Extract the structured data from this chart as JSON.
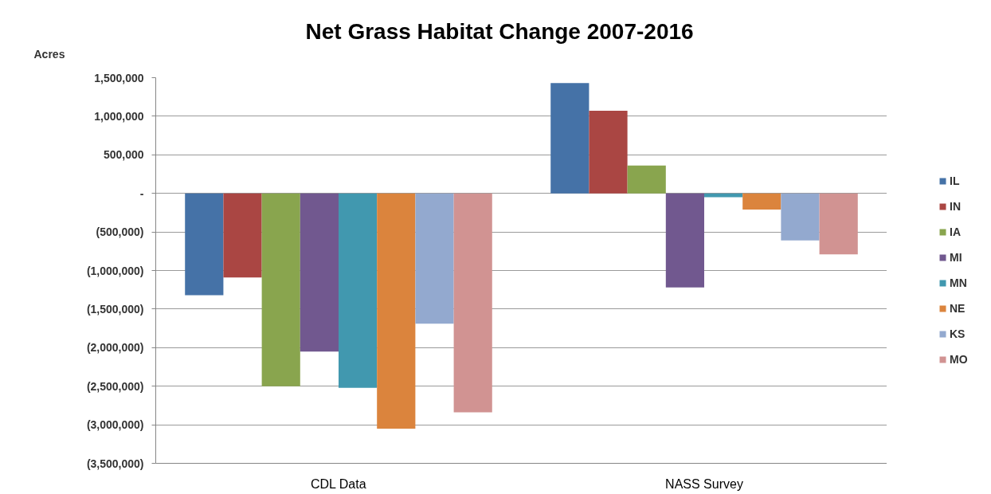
{
  "chart_data": {
    "type": "bar",
    "title": "Net Grass Habitat Change 2007-2016",
    "annotations": [
      "Acres"
    ],
    "categories": [
      "CDL Data",
      "NASS Survey"
    ],
    "series": [
      {
        "name": "IL",
        "color": "#4572a7",
        "values": [
          -1320000,
          1430000
        ]
      },
      {
        "name": "IN",
        "color": "#aa4643",
        "values": [
          -1090000,
          1070000
        ]
      },
      {
        "name": "IA",
        "color": "#89a54e",
        "values": [
          -2500000,
          360000
        ]
      },
      {
        "name": "MI",
        "color": "#71588f",
        "values": [
          -2050000,
          -1220000
        ]
      },
      {
        "name": "MN",
        "color": "#4198af",
        "values": [
          -2520000,
          -50000
        ]
      },
      {
        "name": "NE",
        "color": "#db843d",
        "values": [
          -3050000,
          -210000
        ]
      },
      {
        "name": "KS",
        "color": "#93a9cf",
        "values": [
          -1690000,
          -610000
        ]
      },
      {
        "name": "MO",
        "color": "#d19392",
        "values": [
          -2840000,
          -790000
        ]
      }
    ],
    "ylim": [
      -3500000,
      1500000
    ],
    "yticks": [
      {
        "value": 1500000,
        "label": "1,500,000"
      },
      {
        "value": 1000000,
        "label": "1,000,000"
      },
      {
        "value": 500000,
        "label": "500,000"
      },
      {
        "value": 0,
        "label": "-"
      },
      {
        "value": -500000,
        "label": "(500,000)"
      },
      {
        "value": -1000000,
        "label": "(1,000,000)"
      },
      {
        "value": -1500000,
        "label": "(1,500,000)"
      },
      {
        "value": -2000000,
        "label": "(2,000,000)"
      },
      {
        "value": -2500000,
        "label": "(2,500,000)"
      },
      {
        "value": -3000000,
        "label": "(3,000,000)"
      },
      {
        "value": -3500000,
        "label": "(3,500,000)"
      }
    ],
    "grid": "y",
    "legend": "right"
  }
}
